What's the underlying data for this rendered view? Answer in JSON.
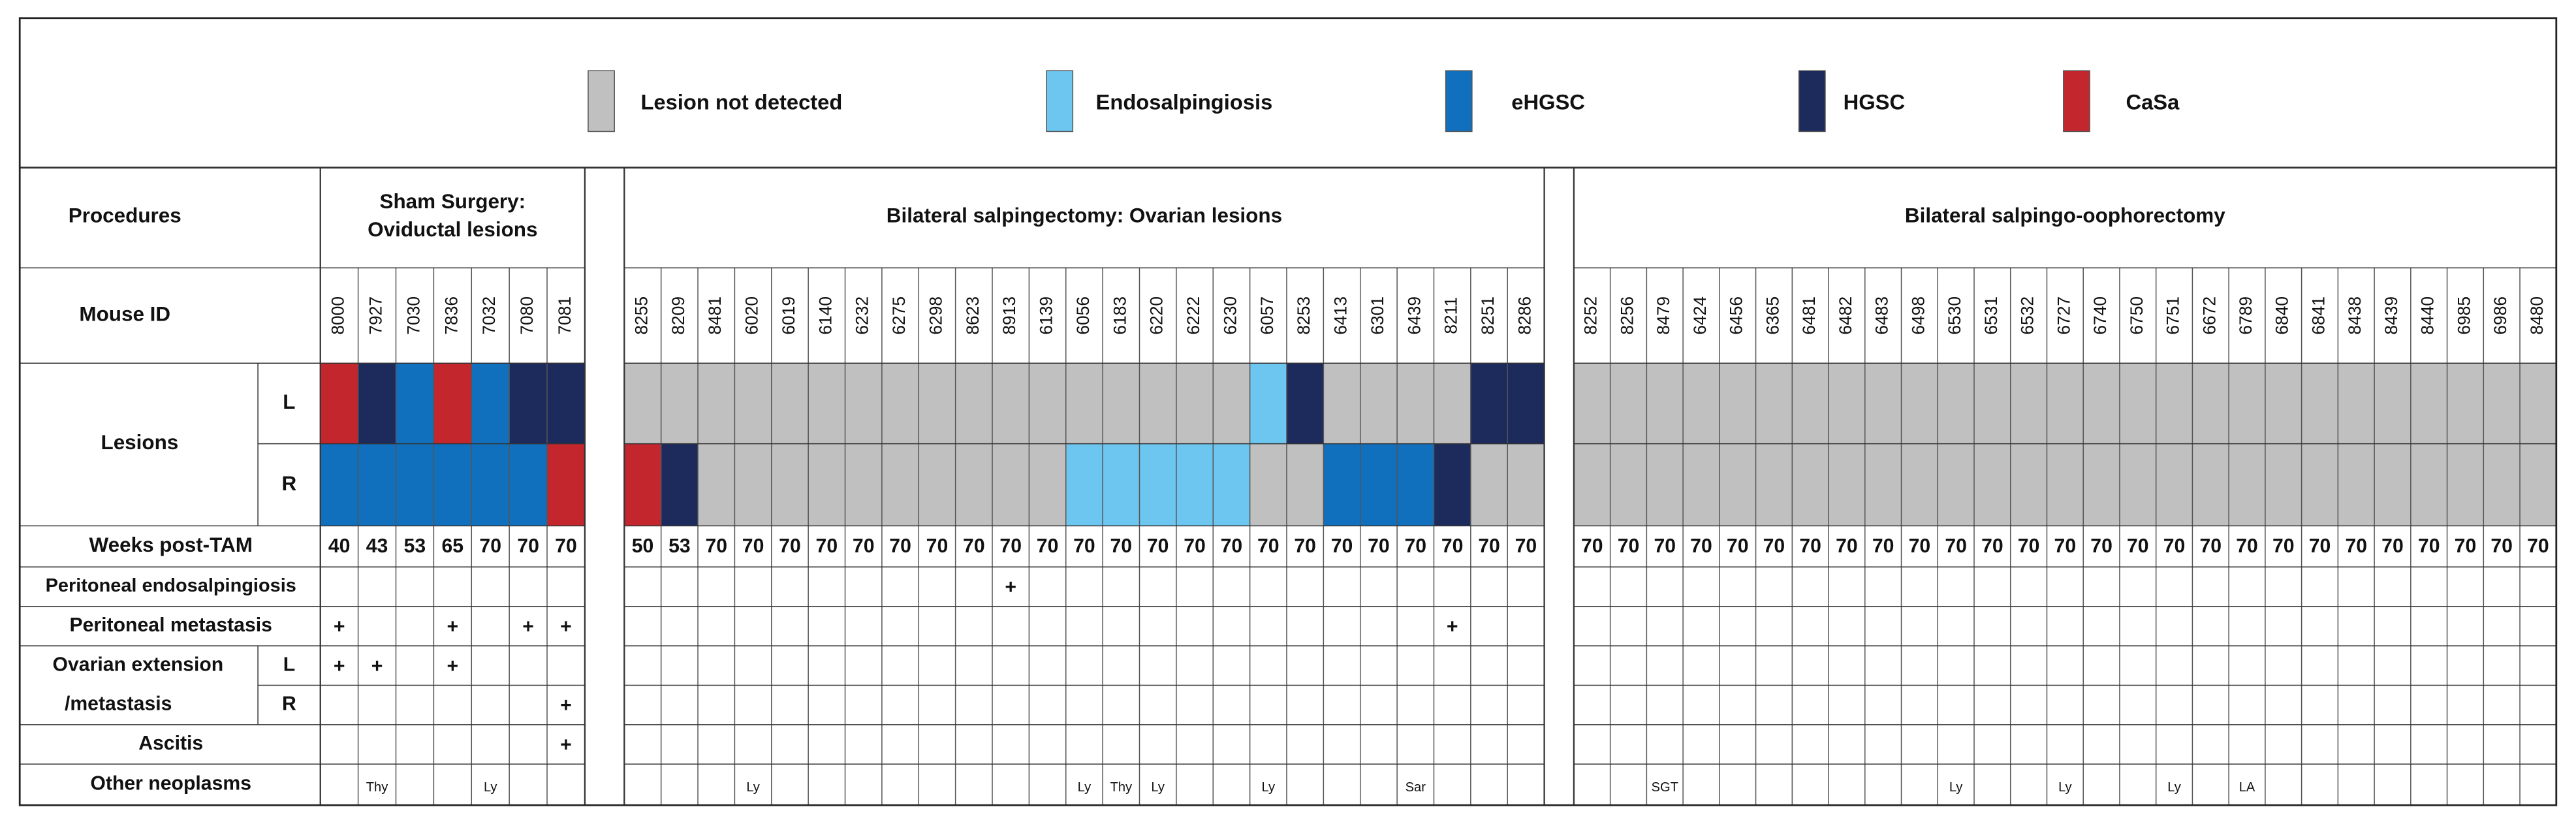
{
  "legend": [
    {
      "label": "Lesion not detected",
      "color": "#c0c0c0"
    },
    {
      "label": "Endosalpingiosis",
      "color": "#6cc6ef"
    },
    {
      "label": "eHGSC",
      "color": "#1170bd"
    },
    {
      "label": "HGSC",
      "color": "#1c2a5c"
    },
    {
      "label": "CaSa",
      "color": "#c4262e"
    }
  ],
  "row_labels": {
    "procedures": "Procedures",
    "mouse_id": "Mouse ID",
    "lesions": "Lesions",
    "lesions_L": "L",
    "lesions_R": "R",
    "weeks": "Weeks post-TAM",
    "peritoneal_endosalpingiosis": "Peritoneal endosalpingiosis",
    "peritoneal_metastasis": "Peritoneal metastasis",
    "ovarian": [
      "Ovarian extension",
      "/metastasis"
    ],
    "ovarian_L": "L",
    "ovarian_R": "R",
    "ascitis": "Ascitis",
    "other_neoplasms": "Other neoplasms"
  },
  "groups": [
    {
      "title": [
        "Sham Surgery:",
        "Oviductal lesions"
      ],
      "ids": [
        "8000",
        "7927",
        "7030",
        "7836",
        "7032",
        "7080",
        "7081"
      ],
      "lesions_L": [
        "CaSa",
        "HGSC",
        "eHGSC",
        "CaSa",
        "eHGSC",
        "HGSC",
        "HGSC"
      ],
      "lesions_R": [
        "eHGSC",
        "eHGSC",
        "eHGSC",
        "eHGSC",
        "eHGSC",
        "eHGSC",
        "CaSa"
      ],
      "weeks": [
        40,
        43,
        53,
        65,
        70,
        70,
        70
      ],
      "peritoneal_endosalpingiosis": [
        null,
        null,
        null,
        null,
        null,
        null,
        null
      ],
      "peritoneal_metastasis": [
        "+",
        null,
        null,
        "+",
        null,
        "+",
        "+"
      ],
      "ovarian_L": [
        "+",
        "+",
        null,
        "+",
        null,
        null,
        null
      ],
      "ovarian_R": [
        null,
        null,
        null,
        null,
        null,
        null,
        "+"
      ],
      "ascitis": [
        null,
        null,
        null,
        null,
        null,
        null,
        "+"
      ],
      "other_neoplasms": [
        null,
        "Thy",
        null,
        null,
        "Ly",
        null,
        null
      ]
    },
    {
      "title": [
        "Bilateral salpingectomy: Ovarian lesions"
      ],
      "ids": [
        "8255",
        "8209",
        "8481",
        "6020",
        "6019",
        "6140",
        "6232",
        "6275",
        "6298",
        "8623",
        "8913",
        "6139",
        "6056",
        "6183",
        "6220",
        "6222",
        "6230",
        "6057",
        "8253",
        "6413",
        "6301",
        "6439",
        "8211",
        "8251",
        "8286"
      ],
      "lesions_L": [
        "Lesion not detected",
        "Lesion not detected",
        "Lesion not detected",
        "Lesion not detected",
        "Lesion not detected",
        "Lesion not detected",
        "Lesion not detected",
        "Lesion not detected",
        "Lesion not detected",
        "Lesion not detected",
        "Lesion not detected",
        "Lesion not detected",
        "Lesion not detected",
        "Lesion not detected",
        "Lesion not detected",
        "Lesion not detected",
        "Lesion not detected",
        "Endosalpingiosis",
        "HGSC",
        "Lesion not detected",
        "Lesion not detected",
        "Lesion not detected",
        "Lesion not detected",
        "HGSC",
        "HGSC"
      ],
      "lesions_R": [
        "CaSa",
        "HGSC",
        "Lesion not detected",
        "Lesion not detected",
        "Lesion not detected",
        "Lesion not detected",
        "Lesion not detected",
        "Lesion not detected",
        "Lesion not detected",
        "Lesion not detected",
        "Lesion not detected",
        "Lesion not detected",
        "Endosalpingiosis",
        "Endosalpingiosis",
        "Endosalpingiosis",
        "Endosalpingiosis",
        "Endosalpingiosis",
        "Lesion not detected",
        "Lesion not detected",
        "eHGSC",
        "eHGSC",
        "eHGSC",
        "HGSC",
        "Lesion not detected",
        "Lesion not detected"
      ],
      "weeks": [
        50,
        53,
        70,
        70,
        70,
        70,
        70,
        70,
        70,
        70,
        70,
        70,
        70,
        70,
        70,
        70,
        70,
        70,
        70,
        70,
        70,
        70,
        70,
        70,
        70
      ],
      "peritoneal_endosalpingiosis": [
        null,
        null,
        null,
        null,
        null,
        null,
        null,
        null,
        null,
        null,
        "+",
        null,
        null,
        null,
        null,
        null,
        null,
        null,
        null,
        null,
        null,
        null,
        null,
        null,
        null
      ],
      "peritoneal_metastasis": [
        null,
        null,
        null,
        null,
        null,
        null,
        null,
        null,
        null,
        null,
        null,
        null,
        null,
        null,
        null,
        null,
        null,
        null,
        null,
        null,
        null,
        null,
        "+",
        null,
        null
      ],
      "ovarian_L": [
        null,
        null,
        null,
        null,
        null,
        null,
        null,
        null,
        null,
        null,
        null,
        null,
        null,
        null,
        null,
        null,
        null,
        null,
        null,
        null,
        null,
        null,
        null,
        null,
        null
      ],
      "ovarian_R": [
        null,
        null,
        null,
        null,
        null,
        null,
        null,
        null,
        null,
        null,
        null,
        null,
        null,
        null,
        null,
        null,
        null,
        null,
        null,
        null,
        null,
        null,
        null,
        null,
        null
      ],
      "ascitis": [
        null,
        null,
        null,
        null,
        null,
        null,
        null,
        null,
        null,
        null,
        null,
        null,
        null,
        null,
        null,
        null,
        null,
        null,
        null,
        null,
        null,
        null,
        null,
        null,
        null
      ],
      "other_neoplasms": [
        null,
        null,
        null,
        "Ly",
        null,
        null,
        null,
        null,
        null,
        null,
        null,
        null,
        "Ly",
        "Thy",
        "Ly",
        null,
        null,
        "Ly",
        null,
        null,
        null,
        "Sar",
        null,
        null,
        null
      ]
    },
    {
      "title": [
        "Bilateral salpingo-oophorectomy"
      ],
      "ids": [
        "8252",
        "8256",
        "8479",
        "6424",
        "6456",
        "6365",
        "6481",
        "6482",
        "6483",
        "6498",
        "6530",
        "6531",
        "6532",
        "6727",
        "6740",
        "6750",
        "6751",
        "6672",
        "6789",
        "6840",
        "6841",
        "8438",
        "8439",
        "8440",
        "6985",
        "6986",
        "8480"
      ],
      "lesions_L": [
        "Lesion not detected",
        "Lesion not detected",
        "Lesion not detected",
        "Lesion not detected",
        "Lesion not detected",
        "Lesion not detected",
        "Lesion not detected",
        "Lesion not detected",
        "Lesion not detected",
        "Lesion not detected",
        "Lesion not detected",
        "Lesion not detected",
        "Lesion not detected",
        "Lesion not detected",
        "Lesion not detected",
        "Lesion not detected",
        "Lesion not detected",
        "Lesion not detected",
        "Lesion not detected",
        "Lesion not detected",
        "Lesion not detected",
        "Lesion not detected",
        "Lesion not detected",
        "Lesion not detected",
        "Lesion not detected",
        "Lesion not detected",
        "Lesion not detected"
      ],
      "lesions_R": [
        "Lesion not detected",
        "Lesion not detected",
        "Lesion not detected",
        "Lesion not detected",
        "Lesion not detected",
        "Lesion not detected",
        "Lesion not detected",
        "Lesion not detected",
        "Lesion not detected",
        "Lesion not detected",
        "Lesion not detected",
        "Lesion not detected",
        "Lesion not detected",
        "Lesion not detected",
        "Lesion not detected",
        "Lesion not detected",
        "Lesion not detected",
        "Lesion not detected",
        "Lesion not detected",
        "Lesion not detected",
        "Lesion not detected",
        "Lesion not detected",
        "Lesion not detected",
        "Lesion not detected",
        "Lesion not detected",
        "Lesion not detected",
        "Lesion not detected"
      ],
      "weeks": [
        70,
        70,
        70,
        70,
        70,
        70,
        70,
        70,
        70,
        70,
        70,
        70,
        70,
        70,
        70,
        70,
        70,
        70,
        70,
        70,
        70,
        70,
        70,
        70,
        70,
        70,
        70
      ],
      "peritoneal_endosalpingiosis": [
        null,
        null,
        null,
        null,
        null,
        null,
        null,
        null,
        null,
        null,
        null,
        null,
        null,
        null,
        null,
        null,
        null,
        null,
        null,
        null,
        null,
        null,
        null,
        null,
        null,
        null,
        null
      ],
      "peritoneal_metastasis": [
        null,
        null,
        null,
        null,
        null,
        null,
        null,
        null,
        null,
        null,
        null,
        null,
        null,
        null,
        null,
        null,
        null,
        null,
        null,
        null,
        null,
        null,
        null,
        null,
        null,
        null,
        null
      ],
      "ovarian_L": [
        null,
        null,
        null,
        null,
        null,
        null,
        null,
        null,
        null,
        null,
        null,
        null,
        null,
        null,
        null,
        null,
        null,
        null,
        null,
        null,
        null,
        null,
        null,
        null,
        null,
        null,
        null
      ],
      "ovarian_R": [
        null,
        null,
        null,
        null,
        null,
        null,
        null,
        null,
        null,
        null,
        null,
        null,
        null,
        null,
        null,
        null,
        null,
        null,
        null,
        null,
        null,
        null,
        null,
        null,
        null,
        null,
        null
      ],
      "ascitis": [
        null,
        null,
        null,
        null,
        null,
        null,
        null,
        null,
        null,
        null,
        null,
        null,
        null,
        null,
        null,
        null,
        null,
        null,
        null,
        null,
        null,
        null,
        null,
        null,
        null,
        null,
        null
      ],
      "other_neoplasms": [
        null,
        null,
        "SGT",
        null,
        null,
        null,
        null,
        null,
        null,
        null,
        "Ly",
        null,
        null,
        "Ly",
        null,
        null,
        "Ly",
        null,
        "LA",
        null,
        null,
        null,
        null,
        null,
        null,
        null,
        null
      ]
    }
  ]
}
